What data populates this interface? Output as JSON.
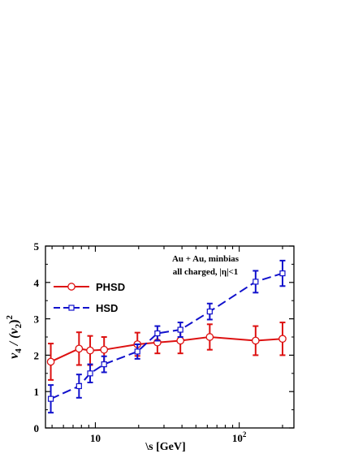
{
  "chart_data": {
    "type": "line",
    "x_scale": "log",
    "xlim": [
      4.5,
      240
    ],
    "ylim": [
      0,
      5
    ],
    "xlabel": "\\s  [GeV]",
    "ylabel": {
      "v": "v",
      "sub4": "4",
      "slash": " / (v",
      "sub2": "2",
      "close": ")",
      "sup": "2"
    },
    "annotation": [
      "Au + Au, minbias",
      "all charged, |η|<1"
    ],
    "x_ticks_major": [
      {
        "value": 10,
        "label": "10"
      },
      {
        "value": 100,
        "label": "10",
        "exp": "2"
      }
    ],
    "y_ticks": [
      0,
      1,
      2,
      3,
      4,
      5
    ],
    "legend_position": "upper-left",
    "series": [
      {
        "name": "PHSD",
        "color": "#dd1111",
        "marker": "circle",
        "dash": "solid",
        "points": [
          {
            "x": 4.9,
            "y": 1.82,
            "err": 0.5
          },
          {
            "x": 7.7,
            "y": 2.18,
            "err": 0.45
          },
          {
            "x": 9.2,
            "y": 2.13,
            "err": 0.4
          },
          {
            "x": 11.5,
            "y": 2.15,
            "err": 0.35
          },
          {
            "x": 19.6,
            "y": 2.3,
            "err": 0.32
          },
          {
            "x": 27,
            "y": 2.35,
            "err": 0.3
          },
          {
            "x": 39,
            "y": 2.4,
            "err": 0.35
          },
          {
            "x": 62.4,
            "y": 2.5,
            "err": 0.35
          },
          {
            "x": 130,
            "y": 2.4,
            "err": 0.4
          },
          {
            "x": 200,
            "y": 2.45,
            "err": 0.45
          }
        ]
      },
      {
        "name": "HSD",
        "color": "#1111cc",
        "marker": "square",
        "dash": "dashed",
        "points": [
          {
            "x": 4.9,
            "y": 0.8,
            "err": 0.38
          },
          {
            "x": 7.7,
            "y": 1.15,
            "err": 0.32
          },
          {
            "x": 9.2,
            "y": 1.5,
            "err": 0.25
          },
          {
            "x": 11.5,
            "y": 1.75,
            "err": 0.22
          },
          {
            "x": 19.6,
            "y": 2.1,
            "err": 0.2
          },
          {
            "x": 27,
            "y": 2.6,
            "err": 0.2
          },
          {
            "x": 39,
            "y": 2.7,
            "err": 0.2
          },
          {
            "x": 62.4,
            "y": 3.2,
            "err": 0.22
          },
          {
            "x": 130,
            "y": 4.02,
            "err": 0.3
          },
          {
            "x": 200,
            "y": 4.25,
            "err": 0.35
          }
        ]
      }
    ]
  }
}
